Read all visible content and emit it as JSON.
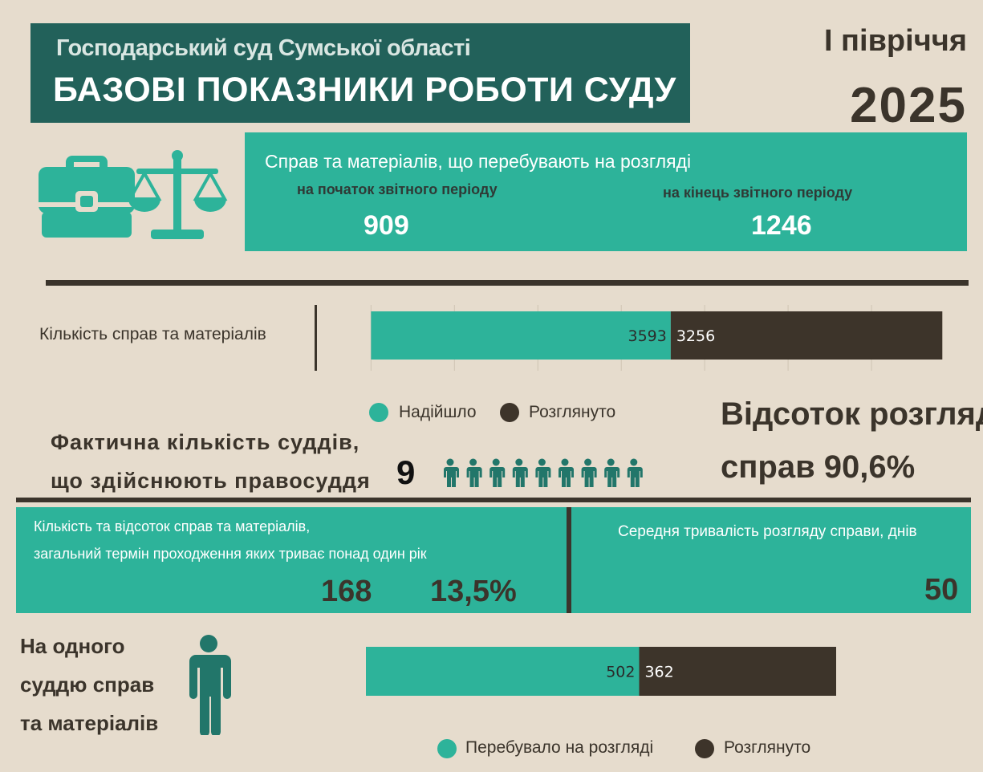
{
  "header": {
    "court_name": "Господарський суд Сумської області",
    "title": "БАЗОВІ ПОКАЗНИКИ РОБОТИ СУДУ",
    "period": "І півріччя",
    "year": "2025"
  },
  "icons": {
    "briefcase": "briefcase-icon",
    "scales": "scales-icon",
    "judge": "person-icon"
  },
  "colors": {
    "background": "#e6dccd",
    "header": "#22615a",
    "teal": "#2db39a",
    "dark": "#3d342a"
  },
  "pending": {
    "title": "Справ та матеріалів, що перебувають на розгляді",
    "start_label": "на початок звітного періоду",
    "start_value": "909",
    "end_label": "на кінець звітного періоду",
    "end_value": "1246"
  },
  "cases_chart": {
    "label": "Кількість справ та матеріалів",
    "legend": [
      "Надійшло",
      "Розглянуто"
    ]
  },
  "judges": {
    "label_line1": "Фактична кількість суддів,",
    "label_line2": "що здійснюють правосуддя",
    "count": "9"
  },
  "review_percent": {
    "line1": "Відсоток розгляду",
    "line2": "справ 90,6%"
  },
  "long_cases": {
    "title_line1": "Кількість та відсоток справ та матеріалів,",
    "title_line2": "загальний термін проходження яких триває понад один рік",
    "count": "168",
    "percent": "13,5%"
  },
  "duration": {
    "title": "Середня тривалість розгляду справи, днів",
    "value": "50"
  },
  "per_judge": {
    "line1": "На одного",
    "line2": "суддю справ",
    "line3": "та матеріалів",
    "legend": [
      "Перебувало на розгляді",
      "Розглянуто"
    ]
  },
  "chart_data": [
    {
      "type": "bar",
      "orientation": "horizontal-stacked",
      "categories": [
        "Кількість справ та матеріалів"
      ],
      "series": [
        {
          "name": "Надійшло",
          "values": [
            3593
          ],
          "color": "#2db39a"
        },
        {
          "name": "Розглянуто",
          "values": [
            3256
          ],
          "color": "#3d342a"
        }
      ],
      "xlim": [
        -600,
        7000
      ],
      "gridlines": [
        0,
        1000,
        2000,
        3000,
        4000,
        5000,
        6000
      ],
      "grid": true,
      "legend_position": "bottom"
    },
    {
      "type": "bar",
      "orientation": "horizontal-stacked",
      "categories": [
        "На одного суддю справ та матеріалів"
      ],
      "series": [
        {
          "name": "Перебувало на розгляді",
          "values": [
            502
          ],
          "color": "#2db39a"
        },
        {
          "name": "Розглянуто",
          "values": [
            362
          ],
          "color": "#3d342a"
        }
      ],
      "xlim": [
        0,
        864
      ],
      "grid": false,
      "legend_position": "bottom"
    }
  ]
}
